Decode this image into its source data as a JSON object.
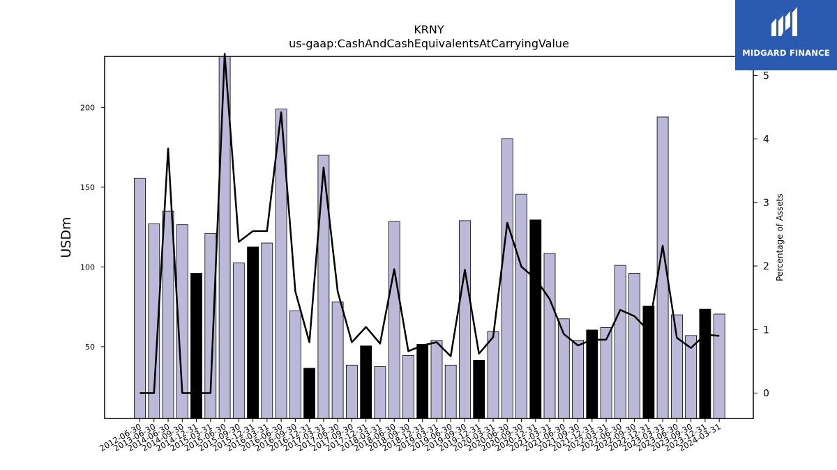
{
  "chart_data": {
    "type": "bar",
    "title": "KRNY",
    "subtitle": "us-gaap:CashAndCashEquivalentsAtCarryingValue",
    "ylabel": "USDm",
    "y2label": "Percentage of Assets",
    "ylim": [
      5,
      232
    ],
    "y2lim": [
      -0.4,
      5.3
    ],
    "yticks": [
      50,
      100,
      150,
      200
    ],
    "y2ticks": [
      0,
      1,
      2,
      3,
      4,
      5
    ],
    "categories": [
      "2012-06-30",
      "2013-06-30",
      "2014-06-30",
      "2014-09-30",
      "2014-12-31",
      "2015-03-31",
      "2015-06-30",
      "2015-09-30",
      "2015-12-31",
      "2016-03-31",
      "2016-06-30",
      "2016-09-30",
      "2016-12-31",
      "2017-03-31",
      "2017-06-30",
      "2017-09-30",
      "2017-12-31",
      "2018-03-31",
      "2018-06-30",
      "2018-09-30",
      "2018-12-31",
      "2019-03-31",
      "2019-06-30",
      "2019-09-30",
      "2019-12-31",
      "2020-03-31",
      "2020-06-30",
      "2020-09-30",
      "2020-12-31",
      "2021-03-31",
      "2021-06-30",
      "2021-09-30",
      "2021-12-31",
      "2022-03-31",
      "2022-06-30",
      "2022-09-30",
      "2022-12-31",
      "2023-03-31",
      "2023-06-30",
      "2023-09-30",
      "2023-12-31",
      "2024-03-31"
    ],
    "series": [
      {
        "kind": "bar",
        "values": [
          155.5,
          127,
          135,
          126.5,
          96,
          121,
          232,
          102.5,
          112.5,
          115,
          199,
          72.5,
          36.5,
          170,
          78,
          38.5,
          50.5,
          37.5,
          128.5,
          44.5,
          51.5,
          54,
          38.5,
          129,
          41.5,
          59.5,
          180.5,
          145.5,
          129.5,
          108.5,
          67.5,
          54,
          60.5,
          62,
          101,
          96,
          75.5,
          194,
          70,
          57,
          73.5,
          70.5
        ],
        "highlight": [
          false,
          false,
          false,
          false,
          true,
          false,
          false,
          false,
          true,
          false,
          false,
          false,
          true,
          false,
          false,
          false,
          true,
          false,
          false,
          false,
          true,
          false,
          false,
          false,
          true,
          false,
          false,
          false,
          true,
          false,
          false,
          false,
          true,
          false,
          false,
          false,
          true,
          false,
          false,
          false,
          true,
          false
        ],
        "color": "#bcb8d8",
        "highlight_color": "#000000"
      },
      {
        "kind": "line",
        "axis": "right",
        "values": [
          0,
          0,
          3.85,
          0,
          0,
          0,
          5.8,
          2.38,
          2.55,
          2.55,
          4.42,
          1.6,
          0.8,
          3.55,
          1.6,
          0.8,
          1.04,
          0.78,
          1.95,
          0.66,
          0.75,
          0.8,
          0.58,
          1.94,
          0.62,
          0.88,
          2.68,
          1.99,
          1.8,
          1.48,
          0.93,
          0.75,
          0.84,
          0.84,
          1.31,
          1.21,
          0.98,
          2.32,
          0.87,
          0.71,
          0.92,
          0.9
        ],
        "color": "#000000"
      }
    ]
  },
  "logo": {
    "text": "MIDGARD FINANCE",
    "icon": "midgard-logo-icon",
    "background": "#2a5bb0"
  }
}
